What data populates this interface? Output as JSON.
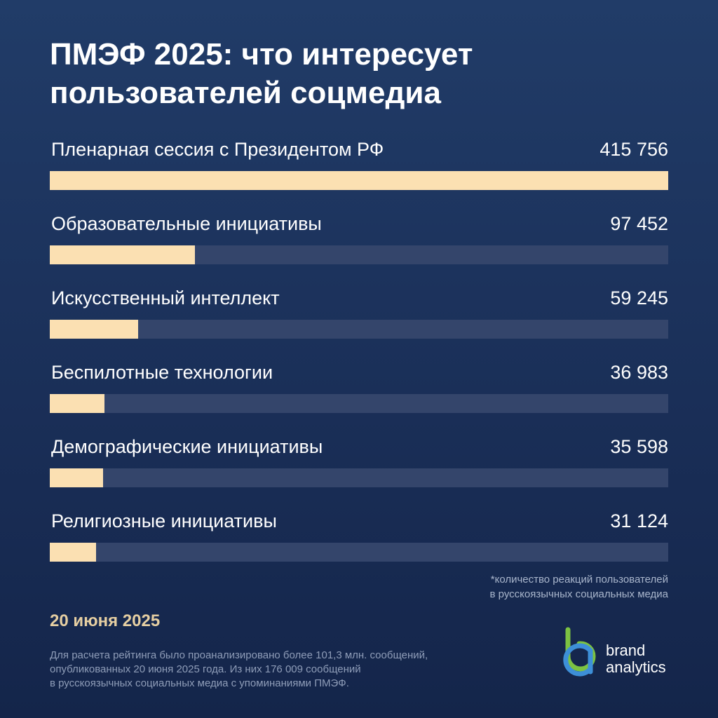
{
  "title": "ПМЭФ 2025: что интересует пользователей соцмедиа",
  "chart_data": {
    "type": "bar",
    "orientation": "horizontal",
    "categories": [
      "Пленарная сессия с Президентом РФ",
      "Образовательные инициативы",
      "Искусственный интеллект",
      "Беспилотные технологии",
      "Демографические инициативы",
      "Религиозные инициативы"
    ],
    "values": [
      415756,
      97452,
      59245,
      36983,
      35598,
      31124
    ],
    "value_labels": [
      "415 756",
      "97 452",
      "59 245",
      "36 983",
      "35 598",
      "31 124"
    ],
    "xlim": [
      0,
      415756
    ],
    "bar_color": "#fbe0b2",
    "track_color": "#34456b"
  },
  "footnote": {
    "line1": "*количество реакций пользователей",
    "line2": "в русскоязычных социальных медиа"
  },
  "date": "20 июня 2025",
  "source": {
    "line1": "Для расчета рейтинга было проанализировано более 101,3 млн. сообщений,",
    "line2": "опубликованных 20 июня 2025 года. Из них 176 009 сообщений",
    "line3": "в русскоязычных социальных медиа с упоминаниями ПМЭФ."
  },
  "logo": {
    "line1": "brand",
    "line2": "analytics"
  },
  "colors": {
    "background": "#1a2f58",
    "accent": "#fbe0b2",
    "date": "#e6cfa2",
    "logo_green": "#7cc242",
    "logo_blue": "#3d8fd8"
  }
}
